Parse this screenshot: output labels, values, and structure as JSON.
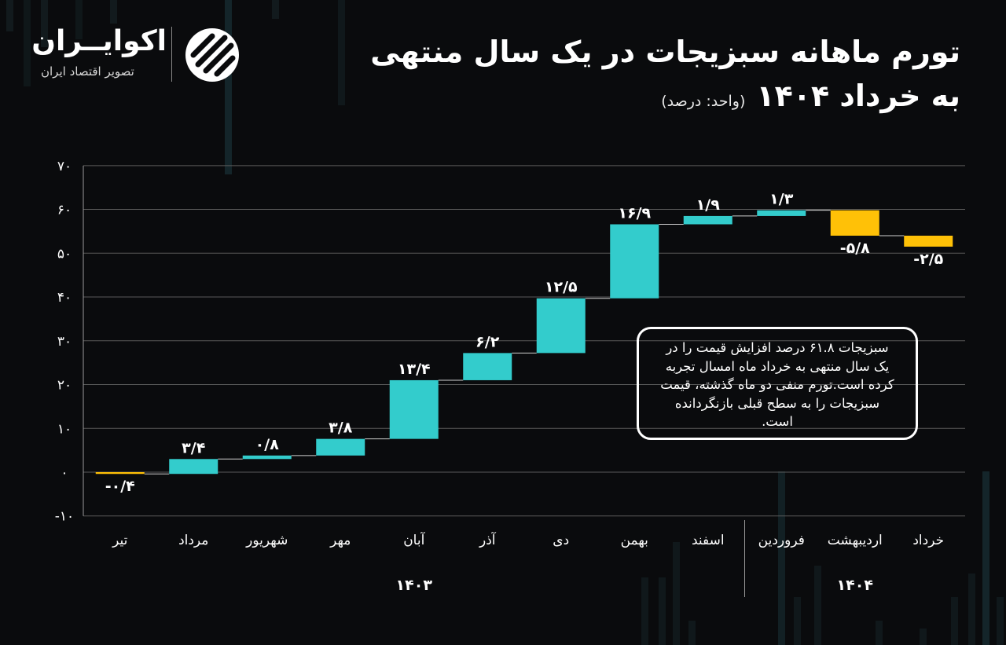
{
  "title": {
    "line1": "تورم ماهانه سبزیجات در یک سال منتهی",
    "line2": "به خرداد ۱۴۰۴",
    "unit": "(واحد: درصد)"
  },
  "logo": {
    "name": "اکوایــران",
    "tagline": "تصویر اقتصاد ایران"
  },
  "callout": {
    "text": "سبزیجات ۶۱.۸ درصد افزایش قیمت را در یک سال منتهی به خرداد ماه امسال تجربه کرده است.تورم منفی دو ماه گذشته، قیمت سبزیجات را به سطح قبلی بازنگردانده است."
  },
  "colors": {
    "increase": "#33cccc",
    "decrease": "#ffc107",
    "background": "#0a0b0d",
    "grid": "#5a5a5a"
  },
  "chart_data": {
    "type": "waterfall",
    "title": "تورم ماهانه سبزیجات در یک سال منتهی به خرداد ۱۴۰۴",
    "unit": "درصد",
    "categories": [
      "تیر",
      "مرداد",
      "شهریور",
      "مهر",
      "آبان",
      "آذر",
      "دی",
      "بهمن",
      "اسفند",
      "فروردین",
      "اردیبهشت",
      "خرداد"
    ],
    "values": [
      -0.4,
      3.4,
      0.8,
      3.8,
      13.4,
      6.2,
      12.5,
      16.9,
      1.9,
      1.3,
      -5.8,
      -2.5
    ],
    "value_labels": [
      "-۰/۴",
      "۳/۴",
      "۰/۸",
      "۳/۸",
      "۱۳/۴",
      "۶/۲",
      "۱۲/۵",
      "۱۶/۹",
      "۱/۹",
      "۱/۳",
      "-۵/۸",
      "-۲/۵"
    ],
    "year_groups": [
      {
        "label": "۱۴۰۳",
        "from": 0,
        "to": 8
      },
      {
        "label": "۱۴۰۴",
        "from": 9,
        "to": 11
      }
    ],
    "ylim": [
      -10,
      70
    ],
    "yticks": [
      -10,
      0,
      10,
      20,
      30,
      40,
      50,
      60,
      70
    ],
    "ytick_labels": [
      "-۱۰",
      "۰",
      "۱۰",
      "۲۰",
      "۳۰",
      "۴۰",
      "۵۰",
      "۶۰",
      "۷۰"
    ],
    "grid": true
  }
}
